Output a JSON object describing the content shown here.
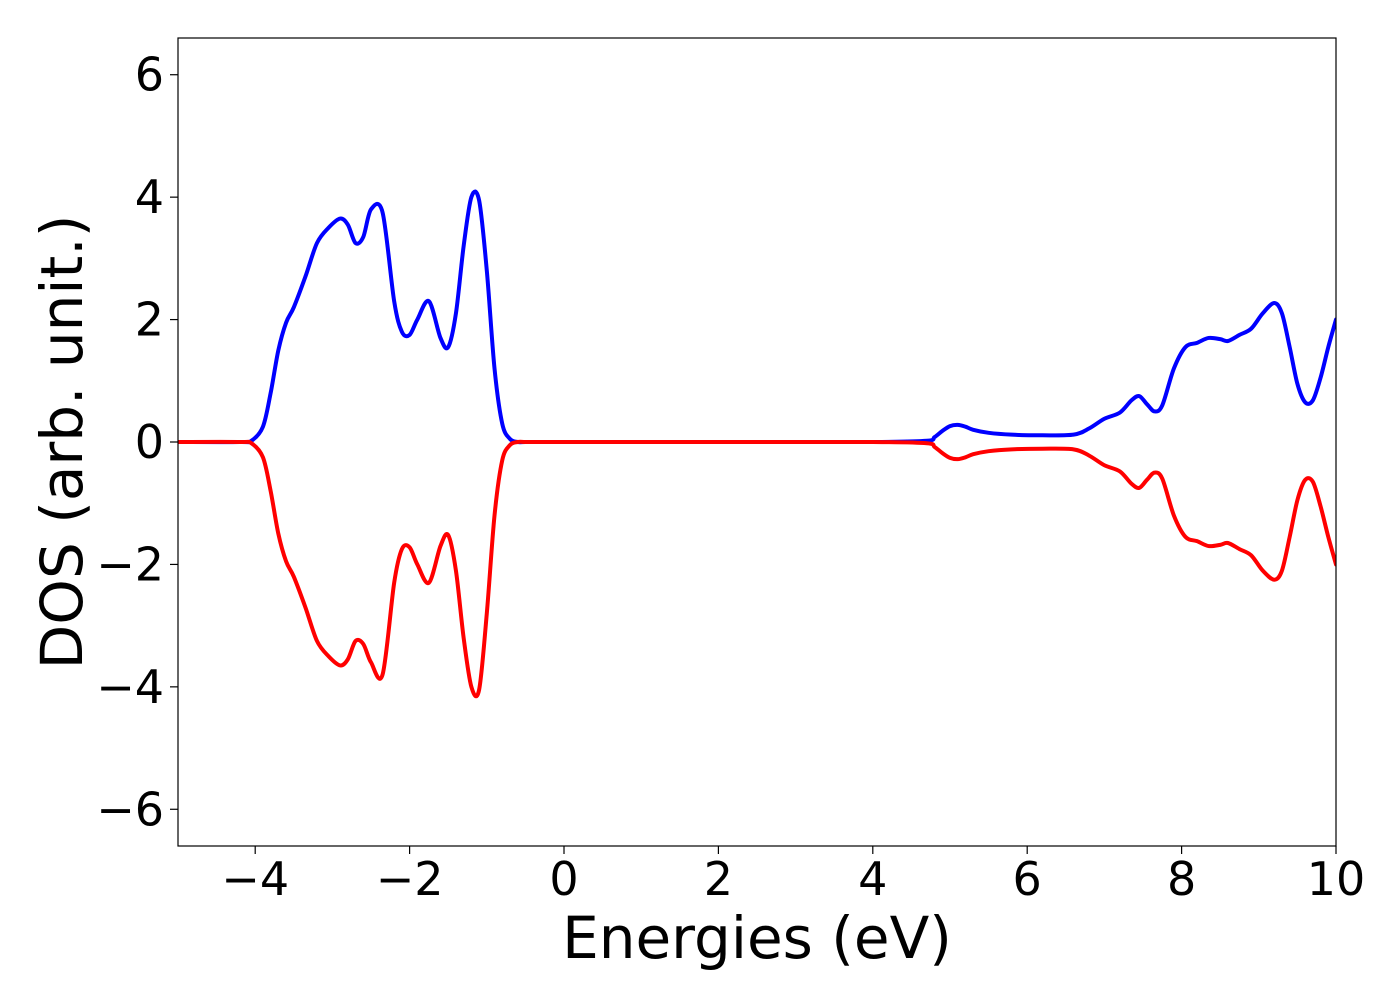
{
  "chart_data": {
    "type": "line",
    "title": "",
    "xlabel": "Energies (eV)",
    "ylabel": "DOS (arb. unit.)",
    "xlim": [
      -5,
      10
    ],
    "ylim": [
      -6.6,
      6.6
    ],
    "xticks": [
      -4,
      -2,
      0,
      2,
      4,
      6,
      8,
      10
    ],
    "xtick_labels": [
      "−4",
      "−2",
      "0",
      "2",
      "4",
      "6",
      "8",
      "10"
    ],
    "yticks": [
      -6,
      -4,
      -2,
      0,
      2,
      4,
      6
    ],
    "ytick_labels": [
      "−6",
      "−4",
      "−2",
      "0",
      "2",
      "4",
      "6"
    ],
    "grid": false,
    "series": [
      {
        "color": "#0000ff",
        "x": [
          -5.0,
          -4.2,
          -4.05,
          -3.9,
          -3.8,
          -3.7,
          -3.6,
          -3.5,
          -3.35,
          -3.2,
          -3.05,
          -2.9,
          -2.8,
          -2.7,
          -2.6,
          -2.5,
          -2.35,
          -2.2,
          -2.1,
          -2.0,
          -1.9,
          -1.75,
          -1.6,
          -1.5,
          -1.4,
          -1.3,
          -1.2,
          -1.1,
          -1.0,
          -0.9,
          -0.8,
          -0.7,
          -0.6,
          -0.5,
          -0.3,
          0.0,
          2.0,
          4.0,
          4.7,
          4.8,
          4.9,
          5.0,
          5.1,
          5.2,
          5.3,
          5.5,
          5.8,
          6.2,
          6.6,
          6.8,
          7.0,
          7.2,
          7.35,
          7.45,
          7.55,
          7.65,
          7.75,
          7.9,
          8.05,
          8.2,
          8.35,
          8.5,
          8.6,
          8.75,
          8.9,
          9.05,
          9.2,
          9.3,
          9.4,
          9.5,
          9.6,
          9.7,
          9.8,
          9.9,
          10.0
        ],
        "y": [
          0.0,
          0.0,
          0.02,
          0.25,
          0.8,
          1.5,
          1.95,
          2.2,
          2.7,
          3.25,
          3.5,
          3.65,
          3.55,
          3.25,
          3.35,
          3.8,
          3.75,
          2.3,
          1.8,
          1.75,
          2.0,
          2.3,
          1.7,
          1.55,
          2.1,
          3.2,
          4.0,
          3.95,
          2.8,
          1.2,
          0.3,
          0.05,
          0.0,
          0.0,
          0.0,
          0.0,
          0.0,
          0.0,
          0.02,
          0.08,
          0.18,
          0.26,
          0.28,
          0.25,
          0.2,
          0.15,
          0.12,
          0.11,
          0.12,
          0.22,
          0.38,
          0.48,
          0.68,
          0.75,
          0.62,
          0.5,
          0.6,
          1.2,
          1.55,
          1.62,
          1.7,
          1.68,
          1.65,
          1.75,
          1.85,
          2.1,
          2.27,
          2.1,
          1.55,
          0.95,
          0.65,
          0.68,
          1.05,
          1.55,
          2.0
        ]
      },
      {
        "color": "#ff0000",
        "x": [
          -5.0,
          -4.2,
          -4.05,
          -3.9,
          -3.8,
          -3.7,
          -3.6,
          -3.5,
          -3.35,
          -3.2,
          -3.05,
          -2.9,
          -2.8,
          -2.7,
          -2.6,
          -2.5,
          -2.35,
          -2.2,
          -2.1,
          -2.0,
          -1.9,
          -1.75,
          -1.6,
          -1.5,
          -1.4,
          -1.3,
          -1.2,
          -1.1,
          -1.0,
          -0.9,
          -0.8,
          -0.7,
          -0.6,
          -0.5,
          -0.3,
          0.0,
          2.0,
          4.0,
          4.7,
          4.8,
          4.9,
          5.0,
          5.1,
          5.2,
          5.3,
          5.5,
          5.8,
          6.2,
          6.6,
          6.8,
          7.0,
          7.2,
          7.35,
          7.45,
          7.55,
          7.65,
          7.75,
          7.9,
          8.05,
          8.2,
          8.35,
          8.5,
          8.6,
          8.75,
          8.9,
          9.05,
          9.2,
          9.3,
          9.4,
          9.5,
          9.6,
          9.7,
          9.8,
          9.9,
          10.0
        ],
        "y": [
          0.0,
          0.0,
          -0.02,
          -0.25,
          -0.8,
          -1.5,
          -1.95,
          -2.2,
          -2.7,
          -3.25,
          -3.5,
          -3.65,
          -3.55,
          -3.25,
          -3.3,
          -3.6,
          -3.8,
          -2.3,
          -1.75,
          -1.72,
          -2.0,
          -2.3,
          -1.7,
          -1.52,
          -2.1,
          -3.2,
          -4.0,
          -4.05,
          -2.8,
          -1.2,
          -0.3,
          -0.05,
          0.0,
          0.0,
          0.0,
          0.0,
          0.0,
          0.0,
          -0.02,
          -0.08,
          -0.18,
          -0.26,
          -0.28,
          -0.25,
          -0.2,
          -0.15,
          -0.12,
          -0.11,
          -0.12,
          -0.22,
          -0.38,
          -0.48,
          -0.68,
          -0.75,
          -0.62,
          -0.5,
          -0.6,
          -1.2,
          -1.55,
          -1.62,
          -1.7,
          -1.68,
          -1.65,
          -1.75,
          -1.85,
          -2.1,
          -2.25,
          -2.1,
          -1.55,
          -0.95,
          -0.62,
          -0.65,
          -1.05,
          -1.55,
          -2.0
        ]
      }
    ]
  }
}
